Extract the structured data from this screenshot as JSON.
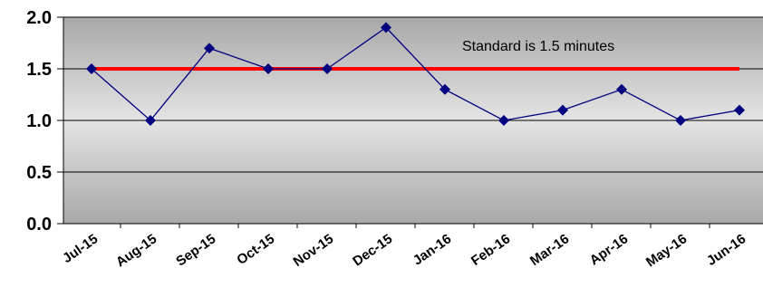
{
  "chart_data": {
    "type": "line",
    "categories": [
      "Jul-15",
      "Aug-15",
      "Sep-15",
      "Oct-15",
      "Nov-15",
      "Dec-15",
      "Jan-16",
      "Feb-16",
      "Mar-16",
      "Apr-16",
      "May-16",
      "Jun-16"
    ],
    "series": [
      {
        "values": [
          1.5,
          1.0,
          1.7,
          1.5,
          1.5,
          1.9,
          1.3,
          1.0,
          1.1,
          1.3,
          1.0,
          1.1
        ],
        "color": "#000080",
        "marker": "diamond"
      }
    ],
    "reference_line": {
      "value": 1.5,
      "color": "#ff0000"
    },
    "annotation": "Standard is 1.5 minutes",
    "ylim": [
      0.0,
      2.0
    ],
    "yticks": [
      "0.0",
      "0.5",
      "1.0",
      "1.5",
      "2.0"
    ],
    "grid": true,
    "legend": "none",
    "title": "",
    "xlabel": "",
    "ylabel": ""
  }
}
